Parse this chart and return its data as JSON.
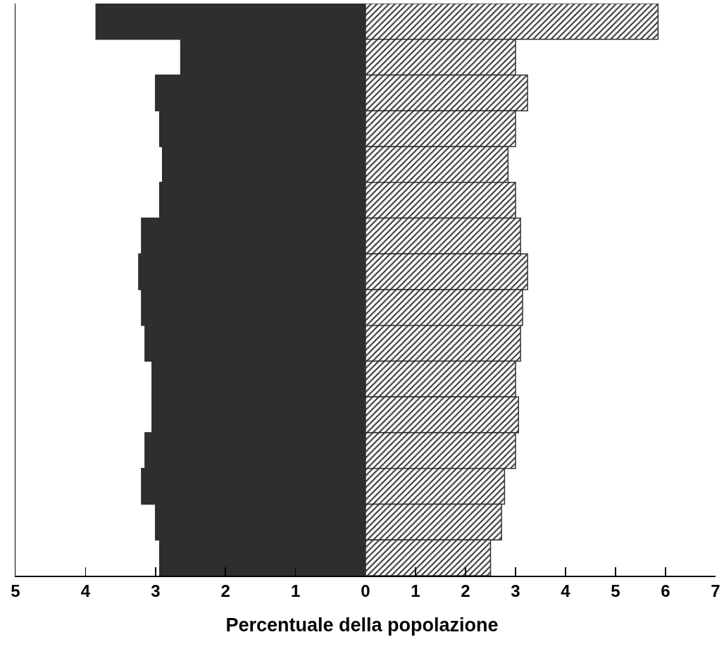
{
  "chart_data": [
    {
      "type": "bar",
      "orientation": "horizontal",
      "categories": [
        null,
        null,
        null,
        null,
        null,
        null,
        null,
        null,
        null,
        null,
        null,
        null,
        null,
        null,
        null,
        null
      ],
      "values": [
        3.85,
        2.64,
        3.0,
        2.94,
        2.9,
        2.94,
        3.2,
        3.24,
        3.2,
        3.15,
        3.05,
        3.05,
        3.15,
        3.2,
        3.0,
        2.94
      ],
      "color": "#2e2e2e",
      "xlim": [
        5,
        0
      ],
      "xticks": [
        5,
        4,
        3,
        2,
        1,
        0
      ],
      "tick_labels": "x",
      "xlabel": "Percentuale della popolazione"
    },
    {
      "type": "bar",
      "orientation": "horizontal",
      "categories": [
        null,
        null,
        null,
        null,
        null,
        null,
        null,
        null,
        null,
        null,
        null,
        null,
        null,
        null,
        null,
        null
      ],
      "values": [
        5.85,
        3.0,
        3.24,
        3.0,
        2.85,
        3.0,
        3.1,
        3.24,
        3.14,
        3.1,
        3.0,
        3.06,
        3.0,
        2.78,
        2.72,
        2.5
      ],
      "color": "#333333",
      "xlim": [
        0,
        7
      ],
      "xticks": [
        1,
        2,
        3,
        4,
        5,
        6,
        7
      ],
      "tick_labels": "x"
    }
  ]
}
